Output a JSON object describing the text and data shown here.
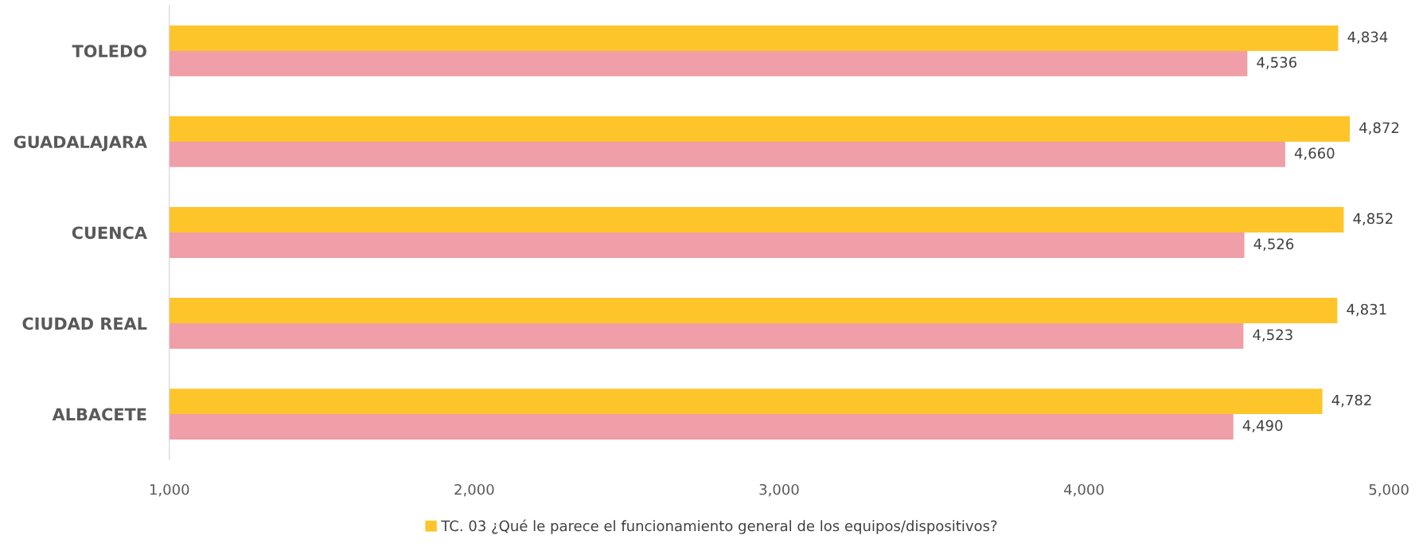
{
  "chart_data": {
    "type": "bar",
    "orientation": "horizontal",
    "categories": [
      "TOLEDO",
      "GUADALAJARA",
      "CUENCA",
      "CIUDAD REAL",
      "ALBACETE"
    ],
    "series": [
      {
        "name": "TC. 03 ¿Qué le parece el funcionamiento general de los equipos/dispositivos?",
        "color": "#fec52a",
        "values": [
          4834,
          4872,
          4852,
          4831,
          4782
        ],
        "value_labels": [
          "4,834",
          "4,872",
          "4,852",
          "4,831",
          "4,782"
        ]
      },
      {
        "color": "#f09ea7",
        "values": [
          4536,
          4660,
          4526,
          4523,
          4490
        ],
        "value_labels": [
          "4,536",
          "4,660",
          "4,526",
          "4,523",
          "4,490"
        ]
      }
    ],
    "xlim": [
      1000,
      5000
    ],
    "xticks": [
      {
        "value": 1000,
        "label": "1,000"
      },
      {
        "value": 2000,
        "label": "2,000"
      },
      {
        "value": 3000,
        "label": "3,000"
      },
      {
        "value": 4000,
        "label": "4,000"
      },
      {
        "value": 5000,
        "label": "5,000"
      }
    ],
    "grid": false,
    "legend": "bottom"
  }
}
